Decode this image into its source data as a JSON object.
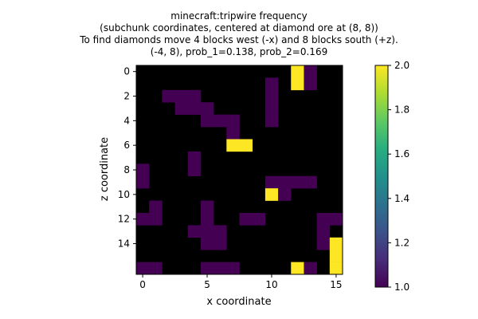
{
  "chart_data": {
    "type": "heatmap",
    "title_lines": [
      "minecraft:tripwire frequency",
      "(subchunk coordinates, centered at diamond ore at (8, 8))",
      "To find diamonds move 4 blocks west (-x) and 8 blocks south (+z).",
      "(-4, 8), prob_1=0.138, prob_2=0.169"
    ],
    "xlabel": "x coordinate",
    "ylabel": "z coordinate",
    "x_ticks": [
      0,
      5,
      10,
      15
    ],
    "y_ticks": [
      0,
      2,
      4,
      6,
      8,
      10,
      12,
      14
    ],
    "colorbar": {
      "min": 1.0,
      "max": 2.0,
      "ticks": [
        "1.0",
        "1.2",
        "1.4",
        "1.6",
        "1.8",
        "2.0"
      ]
    },
    "colormap": "viridis",
    "background_color": "#000000",
    "note": "grid values: 0 = none (black), 1 = count 1, 2 = count 2",
    "grid": [
      [
        0,
        0,
        0,
        0,
        0,
        0,
        0,
        0,
        0,
        0,
        0,
        0,
        2,
        1,
        0,
        0
      ],
      [
        0,
        0,
        0,
        0,
        0,
        0,
        0,
        0,
        0,
        0,
        1,
        0,
        2,
        1,
        0,
        0
      ],
      [
        0,
        0,
        1,
        1,
        1,
        0,
        0,
        0,
        0,
        0,
        1,
        0,
        0,
        0,
        0,
        0
      ],
      [
        0,
        0,
        0,
        1,
        1,
        1,
        0,
        0,
        0,
        0,
        1,
        0,
        0,
        0,
        0,
        0
      ],
      [
        0,
        0,
        0,
        0,
        0,
        1,
        1,
        1,
        0,
        0,
        1,
        0,
        0,
        0,
        0,
        0
      ],
      [
        0,
        0,
        0,
        0,
        0,
        0,
        0,
        1,
        0,
        0,
        0,
        0,
        0,
        0,
        0,
        0
      ],
      [
        0,
        0,
        0,
        0,
        0,
        0,
        0,
        2,
        2,
        0,
        0,
        0,
        0,
        0,
        0,
        0
      ],
      [
        0,
        0,
        0,
        0,
        1,
        0,
        0,
        0,
        0,
        0,
        0,
        0,
        0,
        0,
        0,
        0
      ],
      [
        1,
        0,
        0,
        0,
        1,
        0,
        0,
        0,
        0,
        0,
        0,
        0,
        0,
        0,
        0,
        0
      ],
      [
        1,
        0,
        0,
        0,
        0,
        0,
        0,
        0,
        0,
        0,
        1,
        1,
        1,
        1,
        0,
        0
      ],
      [
        0,
        0,
        0,
        0,
        0,
        0,
        0,
        0,
        0,
        0,
        2,
        1,
        0,
        0,
        0,
        0
      ],
      [
        0,
        1,
        0,
        0,
        0,
        1,
        0,
        0,
        0,
        0,
        0,
        0,
        0,
        0,
        0,
        0
      ],
      [
        1,
        1,
        0,
        0,
        0,
        1,
        0,
        0,
        1,
        1,
        0,
        0,
        0,
        0,
        1,
        1
      ],
      [
        0,
        0,
        0,
        0,
        1,
        1,
        1,
        0,
        0,
        0,
        0,
        0,
        0,
        0,
        1,
        0
      ],
      [
        0,
        0,
        0,
        0,
        0,
        1,
        1,
        0,
        0,
        0,
        0,
        0,
        0,
        0,
        1,
        2
      ],
      [
        0,
        0,
        0,
        0,
        0,
        0,
        0,
        0,
        0,
        0,
        0,
        0,
        0,
        0,
        0,
        2
      ],
      [
        1,
        1,
        0,
        0,
        0,
        1,
        1,
        1,
        0,
        0,
        0,
        0,
        2,
        1,
        0,
        2
      ]
    ]
  }
}
